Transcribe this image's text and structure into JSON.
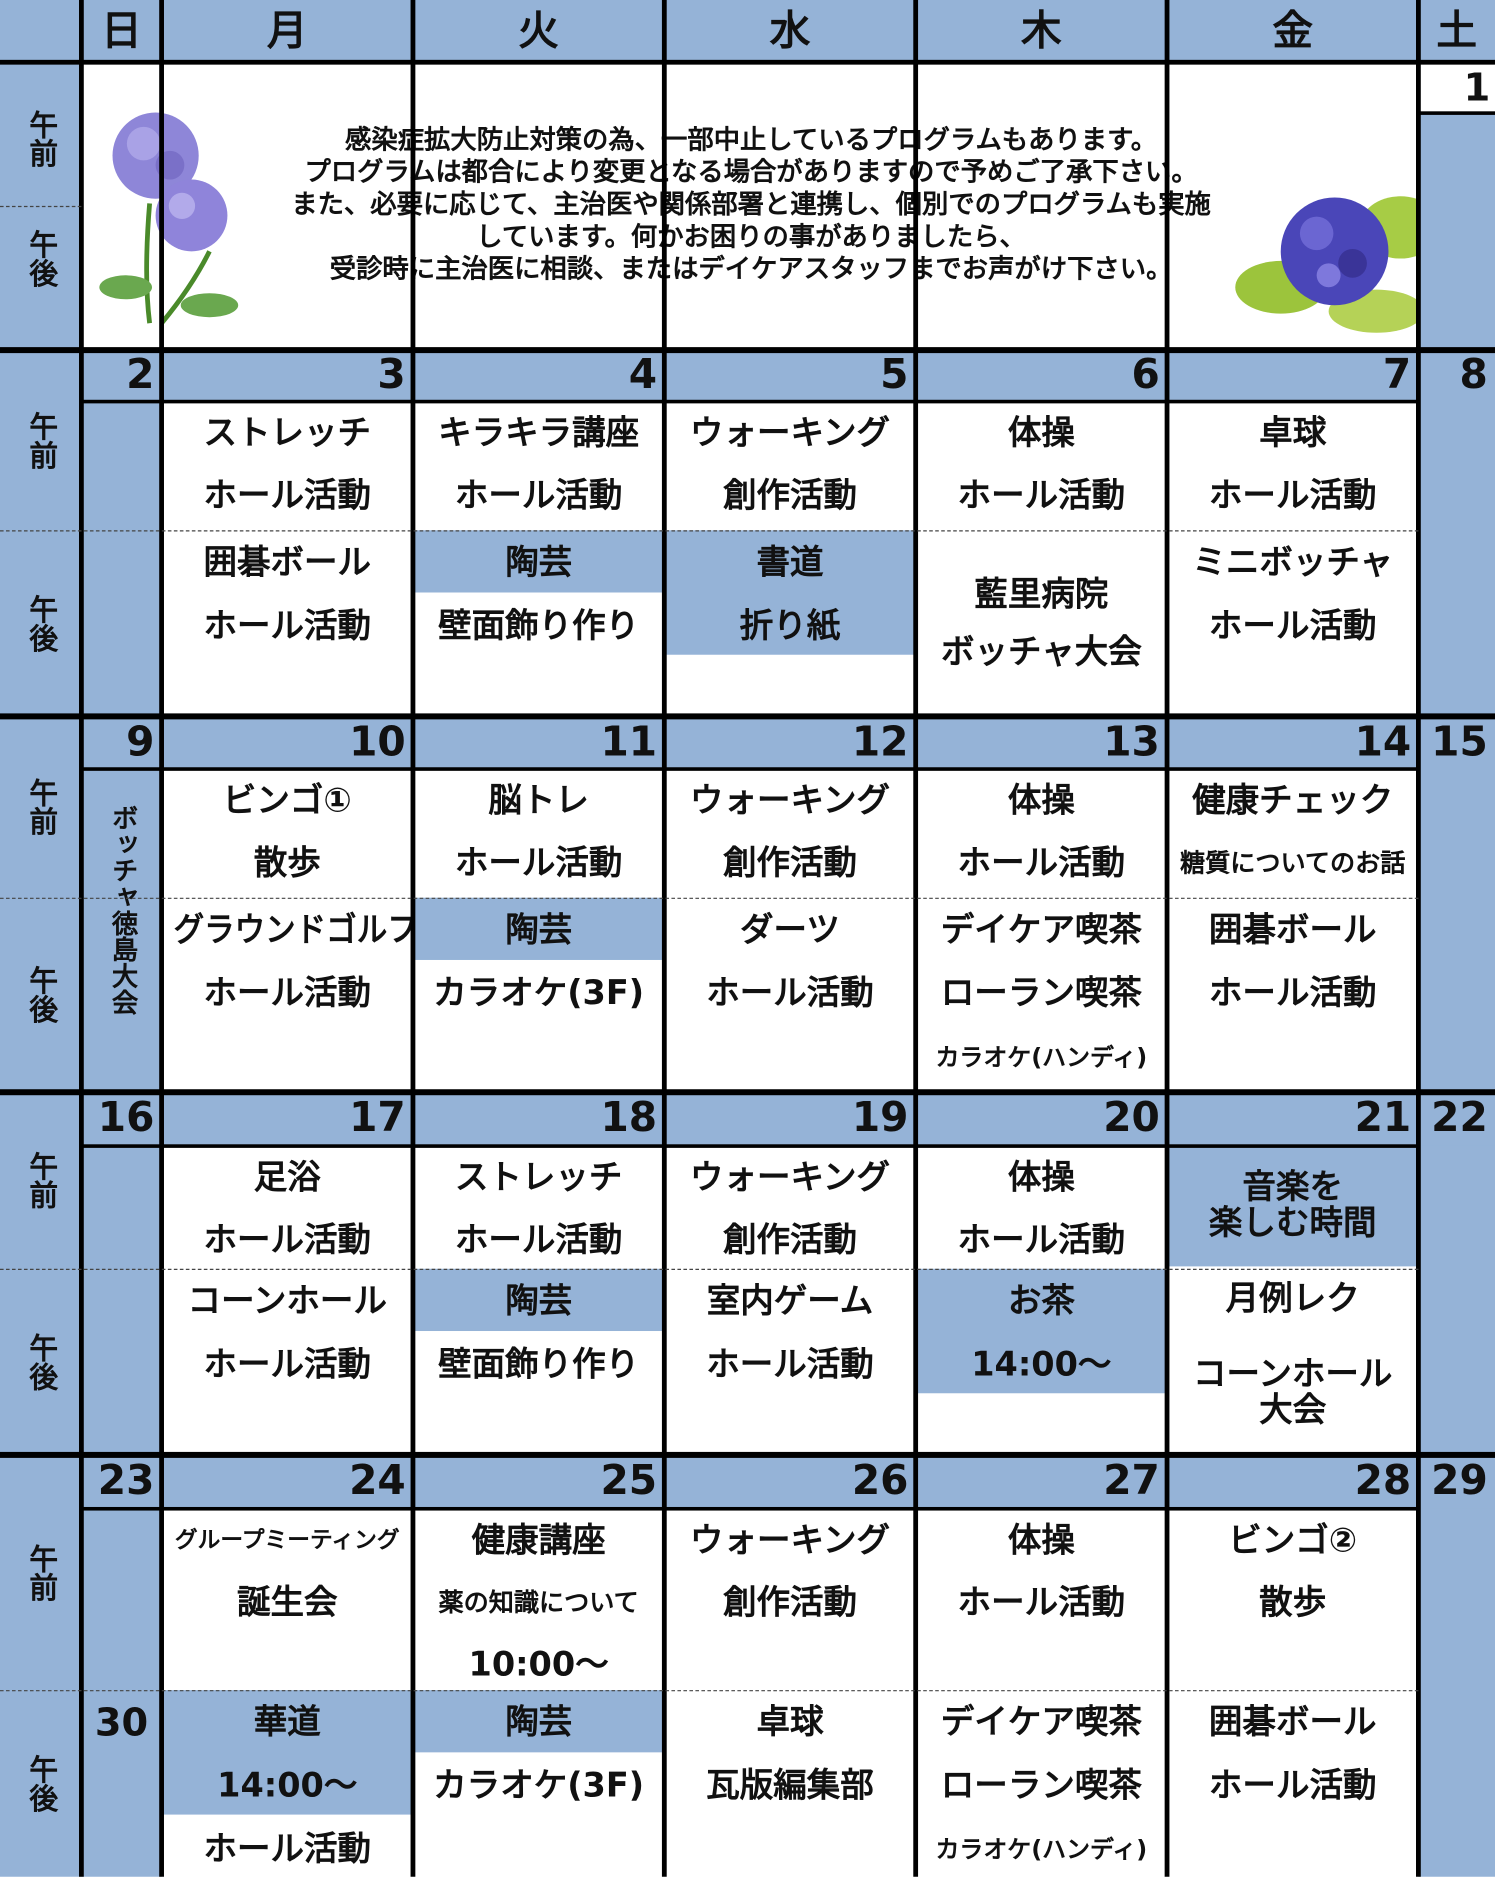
{
  "header": {
    "days": [
      "日",
      "月",
      "火",
      "水",
      "木",
      "金",
      "土"
    ]
  },
  "side_labels": {
    "am": "午前",
    "pm": "午後"
  },
  "notice": {
    "lines": [
      "感染症拡大防止対策の為、一部中止しているプログラムもあります。",
      "プログラムは都合により変更となる場合がありますので予めご了承下さい。",
      "また、必要に応じて、主治医や関係部署と連携し、個別でのプログラムも実施",
      "しています。何かお困りの事がありましたら、",
      "受診時に主治医に相談、またはデイケアスタッフまでお声がけ下さい。"
    ]
  },
  "first_date": "1",
  "weeks": [
    {
      "dates": [
        "2",
        "3",
        "4",
        "5",
        "6",
        "7",
        "8"
      ],
      "am": [
        null,
        {
          "lines": [
            "ストレッチ",
            "ホール活動"
          ]
        },
        {
          "lines": [
            "キラキラ講座",
            "ホール活動"
          ]
        },
        {
          "lines": [
            "ウォーキング",
            "創作活動"
          ]
        },
        {
          "lines": [
            "体操",
            "ホール活動"
          ]
        },
        {
          "lines": [
            "卓球",
            "ホール活動"
          ]
        }
      ],
      "pm": [
        null,
        {
          "lines": [
            "囲碁ボール",
            "ホール活動"
          ]
        },
        {
          "lines": [
            "陶芸",
            "壁面飾り作り"
          ],
          "shaded": 1
        },
        {
          "lines": [
            "書道",
            "折り紙"
          ],
          "shaded": 2
        },
        {
          "lines": [
            "藍里病院",
            "ボッチャ大会"
          ]
        },
        {
          "lines": [
            "ミニボッチャ",
            "ホール活動"
          ]
        }
      ]
    },
    {
      "dates": [
        "9",
        "10",
        "11",
        "12",
        "13",
        "14",
        "15"
      ],
      "am": [
        {
          "lines": [
            "ボッチャ徳島大会"
          ],
          "vertical": true
        },
        {
          "lines": [
            "ビンゴ①",
            "散歩"
          ]
        },
        {
          "lines": [
            "脳トレ",
            "ホール活動"
          ]
        },
        {
          "lines": [
            "ウォーキング",
            "創作活動"
          ]
        },
        {
          "lines": [
            "体操",
            "ホール活動"
          ]
        },
        {
          "lines": [
            "健康チェック",
            "糖質についてのお話"
          ]
        }
      ],
      "pm": [
        null,
        {
          "lines": [
            "グラウンドゴルフ",
            "ホール活動"
          ]
        },
        {
          "lines": [
            "陶芸",
            "カラオケ(3F)"
          ],
          "shaded": 1
        },
        {
          "lines": [
            "ダーツ",
            "ホール活動"
          ]
        },
        {
          "lines": [
            "デイケア喫茶",
            "ローラン喫茶",
            "カラオケ(ハンディ)"
          ]
        },
        {
          "lines": [
            "囲碁ボール",
            "ホール活動"
          ]
        }
      ]
    },
    {
      "dates": [
        "16",
        "17",
        "18",
        "19",
        "20",
        "21",
        "22"
      ],
      "am": [
        null,
        {
          "lines": [
            "足浴",
            "ホール活動"
          ]
        },
        {
          "lines": [
            "ストレッチ",
            "ホール活動"
          ]
        },
        {
          "lines": [
            "ウォーキング",
            "創作活動"
          ]
        },
        {
          "lines": [
            "体操",
            "ホール活動"
          ]
        },
        {
          "lines": [
            "音楽を",
            "楽しむ時間"
          ],
          "shaded": 2
        }
      ],
      "pm": [
        null,
        {
          "lines": [
            "コーンホール",
            "ホール活動"
          ]
        },
        {
          "lines": [
            "陶芸",
            "壁面飾り作り"
          ],
          "shaded": 1
        },
        {
          "lines": [
            "室内ゲーム",
            "ホール活動"
          ]
        },
        {
          "lines": [
            "お茶",
            "14:00～"
          ],
          "shaded": 2
        },
        {
          "lines": [
            "月例レク",
            "コーンホール",
            "大会"
          ]
        }
      ]
    },
    {
      "dates": [
        "23",
        "24",
        "25",
        "26",
        "27",
        "28",
        "29"
      ],
      "am": [
        null,
        {
          "lines": [
            "グループミーティング",
            "誕生会"
          ]
        },
        {
          "lines": [
            "健康講座",
            "薬の知識について",
            "10:00～"
          ]
        },
        {
          "lines": [
            "ウォーキング",
            "創作活動"
          ]
        },
        {
          "lines": [
            "体操",
            "ホール活動"
          ]
        },
        {
          "lines": [
            "ビンゴ②",
            "散歩"
          ]
        }
      ],
      "pm": [
        {
          "lines": [
            "30"
          ]
        },
        {
          "lines": [
            "華道",
            "14:00～",
            "ホール活動"
          ],
          "shaded": 2
        },
        {
          "lines": [
            "陶芸",
            "カラオケ(3F)"
          ],
          "shaded": 1
        },
        {
          "lines": [
            "卓球",
            "瓦版編集部"
          ]
        },
        {
          "lines": [
            "デイケア喫茶",
            "ローラン喫茶",
            "カラオケ(ハンディ)"
          ]
        },
        {
          "lines": [
            "囲碁ボール",
            "ホール活動"
          ]
        }
      ]
    }
  ]
}
